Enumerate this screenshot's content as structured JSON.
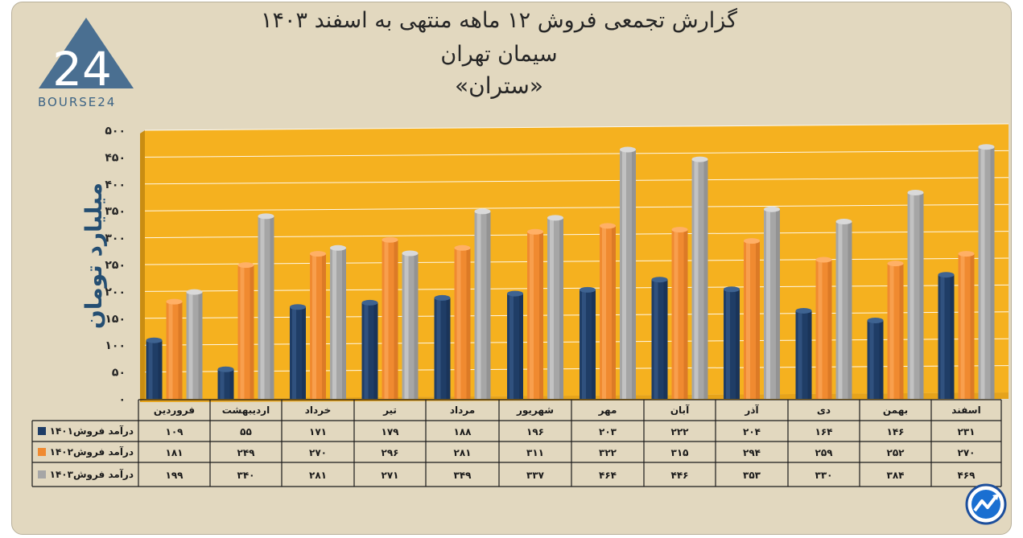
{
  "title": {
    "line1": "گزارش تجمعی فروش ۱۲ ماهه منتهی به اسفند ۱۴۰۳",
    "line2": "سیمان تهران",
    "line3": "«ستران»"
  },
  "logo": {
    "text": "BOURSE24",
    "mark": "24"
  },
  "colors": {
    "background": "#e2d8bf",
    "plot": "#f5b11f",
    "series_1401": "#1f3d66",
    "series_1402": "#f08a30",
    "series_1403": "#a6a6a6",
    "ylabel": "#244e72"
  },
  "chart_data": {
    "type": "bar",
    "title": "گزارش تجمعی فروش ۱۲ ماهه منتهی به اسفند ۱۴۰۳",
    "ylabel": "میلیارد تومان",
    "ylim": [
      0,
      500
    ],
    "yticks": [
      0,
      50,
      100,
      150,
      200,
      250,
      300,
      350,
      400,
      450,
      500
    ],
    "ytick_labels": [
      "۰",
      "۵۰",
      "۱۰۰",
      "۱۵۰",
      "۲۰۰",
      "۲۵۰",
      "۳۰۰",
      "۳۵۰",
      "۴۰۰",
      "۴۵۰",
      "۵۰۰"
    ],
    "categories": [
      "فروردین",
      "اردیبهشت",
      "خرداد",
      "تیر",
      "مرداد",
      "شهریور",
      "مهر",
      "آبان",
      "آذر",
      "دی",
      "بهمن",
      "اسفند"
    ],
    "series": [
      {
        "name": "درآمد فروش۱۴۰۱",
        "values": [
          109,
          55,
          171,
          179,
          188,
          196,
          203,
          222,
          204,
          164,
          146,
          231
        ],
        "labels": [
          "۱۰۹",
          "۵۵",
          "۱۷۱",
          "۱۷۹",
          "۱۸۸",
          "۱۹۶",
          "۲۰۳",
          "۲۲۲",
          "۲۰۴",
          "۱۶۴",
          "۱۴۶",
          "۲۳۱"
        ]
      },
      {
        "name": "درآمد فروش۱۴۰۲",
        "values": [
          181,
          249,
          270,
          296,
          281,
          311,
          322,
          315,
          294,
          259,
          252,
          270
        ],
        "labels": [
          "۱۸۱",
          "۲۴۹",
          "۲۷۰",
          "۲۹۶",
          "۲۸۱",
          "۳۱۱",
          "۳۲۲",
          "۳۱۵",
          "۲۹۴",
          "۲۵۹",
          "۲۵۲",
          "۲۷۰"
        ]
      },
      {
        "name": "درآمد فروش۱۴۰۳",
        "values": [
          199,
          340,
          281,
          271,
          349,
          337,
          464,
          446,
          353,
          330,
          384,
          469
        ],
        "labels": [
          "۱۹۹",
          "۳۴۰",
          "۲۸۱",
          "۲۷۱",
          "۳۴۹",
          "۳۳۷",
          "۴۶۴",
          "۴۴۶",
          "۳۵۳",
          "۳۳۰",
          "۳۸۴",
          "۴۶۹"
        ]
      }
    ],
    "legend": "data-table-below"
  }
}
